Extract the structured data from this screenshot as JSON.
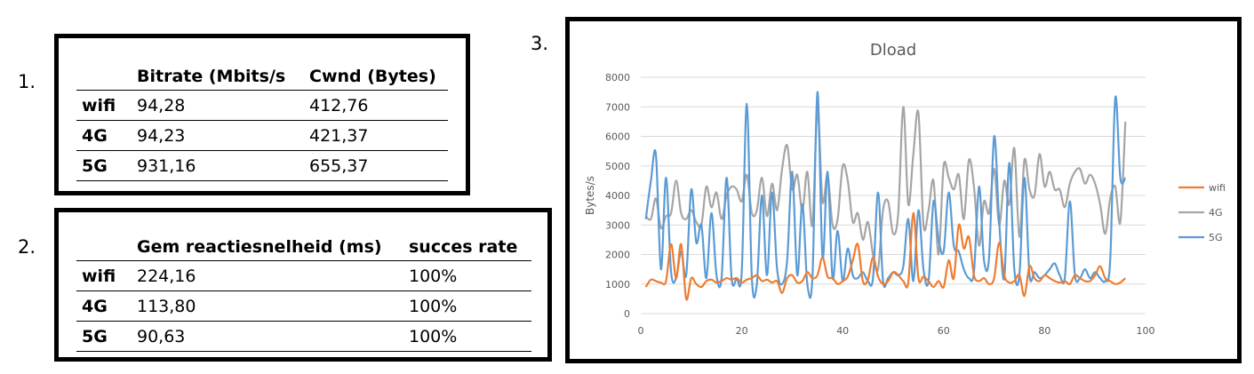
{
  "labels": {
    "one": "1.",
    "two": "2.",
    "three": "3."
  },
  "table1": {
    "headers": [
      "",
      "Bitrate (Mbits/s",
      "Cwnd (Bytes)"
    ],
    "rows": [
      [
        "wifi",
        "94,28",
        "412,76"
      ],
      [
        "4G",
        "94,23",
        "421,37"
      ],
      [
        "5G",
        "931,16",
        "655,37"
      ]
    ]
  },
  "table2": {
    "headers": [
      "",
      "Gem reactiesnelheid (ms)",
      "succes rate"
    ],
    "rows": [
      [
        "wifi",
        "224,16",
        "100%"
      ],
      [
        "4G",
        "113,80",
        "100%"
      ],
      [
        "5G",
        "90,63",
        "100%"
      ]
    ]
  },
  "chart_data": {
    "type": "line",
    "title": "Dload",
    "xlabel": "",
    "ylabel": "Bytes/s",
    "xlim": [
      0,
      100
    ],
    "ylim": [
      0,
      8000
    ],
    "xticks": [
      0,
      20,
      40,
      60,
      80,
      100
    ],
    "yticks": [
      0,
      1000,
      2000,
      3000,
      4000,
      5000,
      6000,
      7000,
      8000
    ],
    "grid": true,
    "legend": "right",
    "x": [
      1,
      2,
      3,
      4,
      5,
      6,
      7,
      8,
      9,
      10,
      11,
      12,
      13,
      14,
      15,
      16,
      17,
      18,
      19,
      20,
      21,
      22,
      23,
      24,
      25,
      26,
      27,
      28,
      29,
      30,
      31,
      32,
      33,
      34,
      35,
      36,
      37,
      38,
      39,
      40,
      41,
      42,
      43,
      44,
      45,
      46,
      47,
      48,
      49,
      50,
      51,
      52,
      53,
      54,
      55,
      56,
      57,
      58,
      59,
      60,
      61,
      62,
      63,
      64,
      65,
      66,
      67,
      68,
      69,
      70,
      71,
      72,
      73,
      74,
      75,
      76,
      77,
      78,
      79,
      80,
      81,
      82,
      83,
      84,
      85,
      86,
      87,
      88,
      89,
      90,
      91,
      92,
      93,
      94,
      95,
      96
    ],
    "series": [
      {
        "name": "wifi",
        "color": "#ED7D31",
        "values": [
          900,
          1150,
          1100,
          1050,
          1100,
          2350,
          1200,
          2350,
          500,
          1200,
          1000,
          900,
          1100,
          1150,
          1050,
          1100,
          1200,
          1150,
          1200,
          1050,
          1150,
          1200,
          1300,
          1100,
          1150,
          1050,
          1100,
          700,
          1200,
          1300,
          1050,
          1100,
          1400,
          1200,
          1300,
          1900,
          1250,
          1200,
          1000,
          1100,
          1250,
          1800,
          2350,
          1100,
          1150,
          1900,
          1250,
          1000,
          1100,
          1400,
          1300,
          1100,
          1050,
          3400,
          1200,
          1250,
          1100,
          900,
          1100,
          900,
          1800,
          1200,
          3000,
          2200,
          2600,
          1300,
          1100,
          1200,
          1000,
          1200,
          2400,
          1300,
          1050,
          1100,
          1300,
          600,
          1600,
          1200,
          1100,
          1300,
          1200,
          1100,
          1050,
          1100,
          1000,
          1300,
          1200,
          1100,
          1100,
          1300,
          1600,
          1200,
          1100,
          1000,
          1050,
          1200
        ]
      },
      {
        "name": "4G",
        "color": "#A5A5A5",
        "values": [
          3300,
          3200,
          3900,
          2900,
          3300,
          3400,
          4500,
          3400,
          3200,
          3500,
          3100,
          3000,
          4300,
          3600,
          4100,
          3200,
          4000,
          4300,
          4200,
          3800,
          4700,
          3400,
          3500,
          4600,
          3300,
          4400,
          3500,
          4900,
          5700,
          4200,
          4700,
          3500,
          4800,
          3000,
          6900,
          3800,
          4700,
          3000,
          3200,
          5000,
          4500,
          3100,
          3400,
          2500,
          3100,
          2000,
          1500,
          3500,
          3800,
          2700,
          3400,
          7000,
          3700,
          5400,
          6800,
          3000,
          3500,
          4500,
          2000,
          5000,
          4600,
          4200,
          4700,
          3200,
          5200,
          4300,
          2300,
          3800,
          3400,
          4900,
          3000,
          4500,
          3700,
          5600,
          2600,
          5200,
          4200,
          4000,
          5400,
          4300,
          4800,
          4200,
          4200,
          3600,
          4400,
          4800,
          4900,
          4400,
          4700,
          4400,
          3700,
          2700,
          3900,
          4300,
          3100,
          6500
        ]
      },
      {
        "name": "5G",
        "color": "#5B9BD5",
        "values": [
          3200,
          4500,
          5400,
          1500,
          4600,
          1400,
          1200,
          2100,
          1300,
          4200,
          2400,
          3000,
          1200,
          3400,
          1300,
          1200,
          4600,
          1200,
          1200,
          1400,
          7100,
          1200,
          1000,
          4000,
          1300,
          4100,
          1500,
          1000,
          1800,
          4800,
          1300,
          3700,
          1000,
          1200,
          7500,
          1900,
          4800,
          1200,
          2800,
          1100,
          2200,
          1300,
          1200,
          1400,
          1100,
          1200,
          4100,
          1100,
          1200,
          1400,
          1300,
          1600,
          3200,
          1100,
          3500,
          1500,
          1100,
          3800,
          2500,
          2100,
          4100,
          2300,
          2100,
          1500,
          1200,
          1400,
          4300,
          1800,
          1900,
          6000,
          3100,
          1200,
          5100,
          1500,
          1300,
          4600,
          1300,
          1400,
          1200,
          1300,
          1500,
          1700,
          1300,
          1200,
          3800,
          1300,
          1200,
          1500,
          1200,
          1400,
          1200,
          1100,
          1800,
          7300,
          4600,
          4600
        ]
      }
    ]
  }
}
